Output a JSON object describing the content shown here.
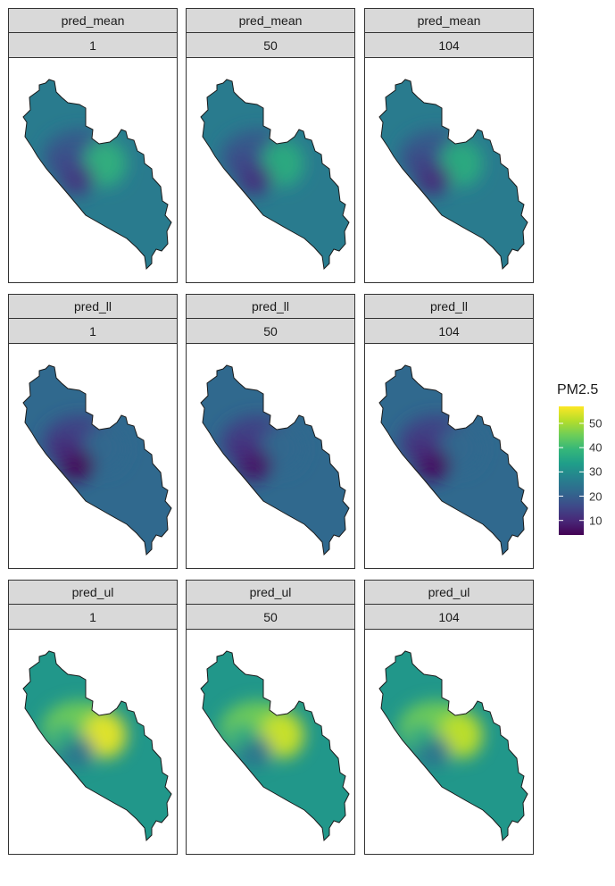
{
  "rows": [
    {
      "variable": "pred_mean",
      "panels": [
        {
          "variable": "pred_mean",
          "time": "1",
          "low_zone": 13,
          "hot_zone": 38,
          "region_level": 26,
          "shore_level": 18
        },
        {
          "variable": "pred_mean",
          "time": "50",
          "low_zone": 12,
          "hot_zone": 37,
          "region_level": 26,
          "shore_level": 18
        },
        {
          "variable": "pred_mean",
          "time": "104",
          "low_zone": 11,
          "hot_zone": 37,
          "region_level": 26,
          "shore_level": 18
        }
      ]
    },
    {
      "variable": "pred_ll",
      "panels": [
        {
          "variable": "pred_ll",
          "time": "1",
          "low_zone": 5,
          "hot_zone": 22,
          "region_level": 22,
          "shore_level": 14
        },
        {
          "variable": "pred_ll",
          "time": "50",
          "low_zone": 7,
          "hot_zone": 22,
          "region_level": 22,
          "shore_level": 14
        },
        {
          "variable": "pred_ll",
          "time": "104",
          "low_zone": 6,
          "hot_zone": 22,
          "region_level": 22,
          "shore_level": 14
        }
      ]
    },
    {
      "variable": "pred_ul",
      "panels": [
        {
          "variable": "pred_ul",
          "time": "1",
          "low_zone": 24,
          "hot_zone": 55,
          "region_level": 32,
          "shore_level": 46
        },
        {
          "variable": "pred_ul",
          "time": "50",
          "low_zone": 24,
          "hot_zone": 53,
          "region_level": 32,
          "shore_level": 46
        },
        {
          "variable": "pred_ul",
          "time": "104",
          "low_zone": 24,
          "hot_zone": 52,
          "region_level": 32,
          "shore_level": 46
        }
      ]
    }
  ],
  "legend": {
    "title": "PM2.5",
    "min": 4,
    "max": 57,
    "ticks": [
      "10",
      "20",
      "30",
      "40",
      "50"
    ],
    "palette": [
      "#440154",
      "#482878",
      "#3e4989",
      "#31688e",
      "#26828e",
      "#1f9e89",
      "#35b779",
      "#6ece58",
      "#b5de2b",
      "#fde725"
    ]
  },
  "colors": {
    "strip_background": "#d9d9d9",
    "border": "#333333",
    "region_outline": "#1a1a1a"
  }
}
